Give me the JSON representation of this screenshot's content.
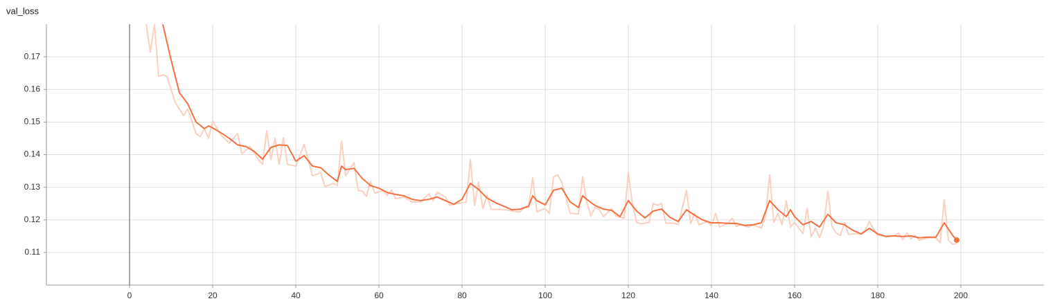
{
  "chart_data": {
    "type": "line",
    "title": "val_loss",
    "xlim": [
      -20,
      220
    ],
    "xticks": [
      0,
      20,
      40,
      60,
      80,
      100,
      120,
      140,
      160,
      180,
      200
    ],
    "ylim": [
      0.1,
      0.18
    ],
    "yticks": [
      0.11,
      0.12,
      0.13,
      0.14,
      0.15,
      0.16,
      0.17
    ],
    "grid": true,
    "series": [
      {
        "color": "#fbd0c0",
        "x": [
          4,
          5,
          6,
          7,
          8,
          9,
          11,
          13,
          14,
          16,
          17,
          18,
          19,
          20,
          22,
          24,
          26,
          27,
          29,
          31,
          32,
          33,
          34,
          35,
          36,
          37,
          38,
          40,
          42,
          44,
          46,
          47,
          49,
          50,
          51,
          52,
          54,
          55,
          56,
          57,
          58,
          59,
          61,
          62,
          63,
          64,
          66,
          68,
          70,
          72,
          73,
          74,
          76,
          77,
          79,
          81,
          82,
          83,
          84,
          85,
          86,
          87,
          89,
          91,
          93,
          94,
          95,
          96,
          97,
          98,
          100,
          101,
          102,
          103,
          104,
          105,
          106,
          108,
          109,
          110,
          111,
          112,
          113,
          114,
          116,
          117,
          119,
          120,
          121,
          122,
          123,
          125,
          126,
          127,
          128,
          129,
          131,
          132,
          134,
          135,
          136,
          137,
          139,
          140,
          141,
          142,
          144,
          145,
          146,
          147,
          149,
          150,
          152,
          153,
          154,
          155,
          156,
          157,
          158,
          159,
          160,
          162,
          163,
          164,
          165,
          166,
          167,
          168,
          169,
          170,
          171,
          172,
          173,
          175,
          176,
          177,
          178,
          179,
          180,
          182,
          184,
          185,
          186,
          187,
          188,
          189,
          190,
          192,
          194,
          195,
          196,
          197,
          198,
          199
        ],
        "values": [
          0.18,
          0.1715,
          0.18,
          0.164,
          0.1645,
          0.164,
          0.156,
          0.152,
          0.154,
          0.1465,
          0.1455,
          0.148,
          0.145,
          0.1503,
          0.146,
          0.1435,
          0.1465,
          0.1402,
          0.1425,
          0.1385,
          0.137,
          0.1473,
          0.1385,
          0.145,
          0.137,
          0.1452,
          0.137,
          0.1365,
          0.1432,
          0.1335,
          0.1345,
          0.1302,
          0.1312,
          0.1305,
          0.1442,
          0.1335,
          0.1375,
          0.129,
          0.1288,
          0.1272,
          0.1318,
          0.1282,
          0.129,
          0.1275,
          0.1292,
          0.1265,
          0.127,
          0.1255,
          0.1255,
          0.128,
          0.1258,
          0.1285,
          0.127,
          0.1245,
          0.125,
          0.1255,
          0.1385,
          0.1245,
          0.1315,
          0.1235,
          0.1275,
          0.1232,
          0.1232,
          0.123,
          0.1225,
          0.1225,
          0.1238,
          0.1238,
          0.133,
          0.1225,
          0.1235,
          0.122,
          0.1332,
          0.1338,
          0.1315,
          0.1268,
          0.122,
          0.1218,
          0.1332,
          0.1255,
          0.1212,
          0.1238,
          0.1232,
          0.121,
          0.1235,
          0.1212,
          0.1205,
          0.1345,
          0.1245,
          0.1192,
          0.1188,
          0.1192,
          0.125,
          0.1245,
          0.125,
          0.119,
          0.119,
          0.1185,
          0.129,
          0.1188,
          0.122,
          0.1185,
          0.1195,
          0.1182,
          0.122,
          0.1178,
          0.119,
          0.1205,
          0.118,
          0.1185,
          0.1178,
          0.1185,
          0.1175,
          0.121,
          0.1338,
          0.1192,
          0.122,
          0.1185,
          0.1258,
          0.1178,
          0.1192,
          0.1158,
          0.1235,
          0.1148,
          0.1175,
          0.1145,
          0.118,
          0.1288,
          0.118,
          0.116,
          0.1152,
          0.1192,
          0.1155,
          0.1158,
          0.1155,
          0.1168,
          0.1195,
          0.1172,
          0.1152,
          0.115,
          0.1152,
          0.116,
          0.114,
          0.116,
          0.1142,
          0.1152,
          0.1138,
          0.1145,
          0.1145,
          0.113,
          0.1262,
          0.1138,
          0.1125,
          0.1128
        ]
      },
      {
        "color": "#f4703f",
        "x": [
          8,
          10,
          12,
          14,
          16,
          18,
          19,
          20,
          22,
          24,
          26,
          28,
          30,
          32,
          34,
          36,
          38,
          40,
          42,
          44,
          46,
          48,
          50,
          51,
          52,
          54,
          56,
          58,
          60,
          62,
          64,
          66,
          68,
          70,
          72,
          74,
          76,
          78,
          80,
          82,
          84,
          86,
          88,
          90,
          92,
          94,
          96,
          97,
          98,
          100,
          102,
          104,
          106,
          108,
          109,
          110,
          112,
          114,
          116,
          118,
          120,
          122,
          124,
          126,
          128,
          130,
          132,
          134,
          136,
          138,
          140,
          142,
          144,
          146,
          148,
          150,
          152,
          154,
          156,
          158,
          159,
          160,
          162,
          164,
          166,
          168,
          170,
          172,
          174,
          176,
          178,
          180,
          182,
          184,
          186,
          188,
          190,
          192,
          194,
          196,
          198,
          199
        ],
        "values": [
          0.18,
          0.169,
          0.159,
          0.1556,
          0.15,
          0.148,
          0.1488,
          0.1482,
          0.1467,
          0.145,
          0.143,
          0.1425,
          0.141,
          0.1386,
          0.1422,
          0.143,
          0.1428,
          0.138,
          0.1397,
          0.1365,
          0.136,
          0.1337,
          0.1318,
          0.1365,
          0.1354,
          0.1358,
          0.1327,
          0.1305,
          0.1297,
          0.1284,
          0.1278,
          0.1274,
          0.1263,
          0.1259,
          0.1263,
          0.127,
          0.1259,
          0.1248,
          0.1263,
          0.1312,
          0.1293,
          0.1267,
          0.1253,
          0.1242,
          0.1231,
          0.1233,
          0.1242,
          0.1274,
          0.1259,
          0.1246,
          0.1291,
          0.1297,
          0.1255,
          0.1238,
          0.1274,
          0.1263,
          0.1244,
          0.1233,
          0.1229,
          0.121,
          0.1259,
          0.1227,
          0.1206,
          0.1227,
          0.1233,
          0.1208,
          0.1195,
          0.1231,
          0.1214,
          0.1199,
          0.1191,
          0.1191,
          0.1189,
          0.1189,
          0.1183,
          0.1185,
          0.1191,
          0.1259,
          0.1231,
          0.121,
          0.1231,
          0.121,
          0.1185,
          0.1195,
          0.1178,
          0.1217,
          0.1191,
          0.1185,
          0.1168,
          0.1157,
          0.1174,
          0.1157,
          0.1149,
          0.1151,
          0.1149,
          0.1151,
          0.1145,
          0.1147,
          0.1147,
          0.1191,
          0.1153,
          0.1138
        ]
      }
    ]
  }
}
